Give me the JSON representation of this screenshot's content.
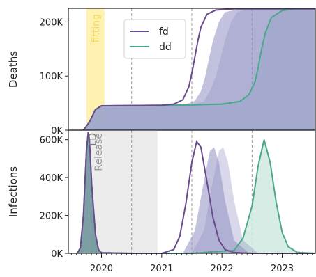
{
  "colors": {
    "fd": "#6a4a8c",
    "dd": "#4aa88a",
    "fd_band": "#8f8fc4",
    "dd_fill": "#cfe9df",
    "fitting": "#fff2b0",
    "fitting_text": "#f5d860",
    "release": "#ececec",
    "release_text": "#9a9a9a",
    "ld_text": "#7a7a7a",
    "vline": "#9a9a9a"
  },
  "chart_data": [
    {
      "type": "line",
      "panel": "top",
      "xlabel": "",
      "ylabel": "Deaths",
      "xlim": [
        2019.45,
        2023.55
      ],
      "ylim": [
        0,
        225000
      ],
      "yticks": [
        0,
        100000,
        200000
      ],
      "ytick_labels": [
        "0K",
        "100K",
        "200K"
      ],
      "vlines": [
        2020.5,
        2021.5,
        2022.5
      ],
      "shaded_regions": [
        {
          "label": "fitting",
          "x": [
            2019.75,
            2020.05
          ]
        }
      ],
      "legend": {
        "placement": "upper-center",
        "entries": [
          "fd",
          "dd"
        ]
      },
      "series": [
        {
          "name": "fd",
          "x": [
            2019.7,
            2019.8,
            2019.9,
            2020.0,
            2020.5,
            2021.0,
            2021.2,
            2021.35,
            2021.45,
            2021.5,
            2021.55,
            2021.6,
            2021.65,
            2021.75,
            2021.9,
            2022.2,
            2023.55
          ],
          "y": [
            0,
            15000,
            38000,
            45000,
            45500,
            46000,
            48000,
            56000,
            80000,
            105000,
            135000,
            165000,
            190000,
            214000,
            222000,
            224000,
            224000
          ]
        },
        {
          "name": "dd",
          "x": [
            2019.7,
            2019.8,
            2019.9,
            2020.0,
            2020.5,
            2021.0,
            2021.5,
            2022.0,
            2022.3,
            2022.45,
            2022.55,
            2022.6,
            2022.65,
            2022.72,
            2022.82,
            2023.0,
            2023.2,
            2023.55
          ],
          "y": [
            0,
            15000,
            38000,
            45000,
            45500,
            46000,
            46500,
            48000,
            53000,
            66000,
            90000,
            115000,
            145000,
            180000,
            208000,
            221000,
            224000,
            224000
          ]
        },
        {
          "name": "",
          "x": [
            2019.7,
            2019.8,
            2019.9,
            2020.0,
            2020.5,
            2021.0,
            2021.4,
            2021.55,
            2021.65,
            2021.72,
            2021.78,
            2021.85,
            2021.95,
            2022.05,
            2022.3,
            2023.55
          ],
          "y": [
            0,
            15000,
            38000,
            45000,
            45500,
            46000,
            47500,
            54000,
            72000,
            98000,
            130000,
            165000,
            200000,
            218000,
            224000,
            224000
          ]
        },
        {
          "name": "",
          "x": [
            2019.7,
            2019.8,
            2019.9,
            2020.0,
            2020.5,
            2021.0,
            2021.5,
            2021.7,
            2021.8,
            2021.9,
            2021.97,
            2022.05,
            2022.15,
            2022.25,
            2022.45,
            2023.55
          ],
          "y": [
            0,
            15000,
            38000,
            45000,
            45500,
            46000,
            47000,
            53000,
            72000,
            100000,
            130000,
            165000,
            200000,
            218000,
            224000,
            224000
          ]
        }
      ]
    },
    {
      "type": "line",
      "panel": "bottom",
      "xlabel": "",
      "ylabel": "Infections",
      "xlim": [
        2019.45,
        2023.55
      ],
      "ylim": [
        0,
        650000
      ],
      "yticks": [
        0,
        200000,
        400000,
        600000
      ],
      "ytick_labels": [
        "0K",
        "200K",
        "400K",
        "600K"
      ],
      "xticks": [
        2020,
        2021,
        2022,
        2023
      ],
      "xtick_labels": [
        "2020",
        "2021",
        "2022",
        "2023"
      ],
      "vlines": [
        2020.5,
        2021.5,
        2022.5
      ],
      "shaded_regions": [
        {
          "label": "LD",
          "x": [
            2019.65,
            2019.82
          ]
        },
        {
          "label": "Release",
          "x": [
            2019.82,
            2020.93
          ]
        }
      ],
      "series": [
        {
          "name": "fd",
          "x": [
            2019.6,
            2019.65,
            2019.7,
            2019.75,
            2019.78,
            2019.8,
            2019.84,
            2019.9,
            2019.95,
            2020.0,
            2020.5,
            2021.0,
            2021.2,
            2021.3,
            2021.4,
            2021.5,
            2021.58,
            2021.65,
            2021.75,
            2021.85,
            2021.95,
            2022.05,
            2022.2,
            2022.5,
            2023.55
          ],
          "y": [
            0,
            30000,
            200000,
            540000,
            640000,
            600000,
            350000,
            100000,
            20000,
            3000,
            0,
            0,
            20000,
            90000,
            260000,
            480000,
            590000,
            560000,
            380000,
            190000,
            70000,
            20000,
            4000,
            0,
            0
          ]
        },
        {
          "name": "dd",
          "x": [
            2019.6,
            2019.65,
            2019.7,
            2019.75,
            2019.78,
            2019.8,
            2019.84,
            2019.9,
            2019.95,
            2020.0,
            2020.5,
            2021.5,
            2022.2,
            2022.35,
            2022.5,
            2022.6,
            2022.7,
            2022.8,
            2022.9,
            2023.0,
            2023.1,
            2023.25,
            2023.55
          ],
          "y": [
            0,
            30000,
            200000,
            540000,
            640000,
            600000,
            350000,
            100000,
            20000,
            3000,
            0,
            0,
            15000,
            80000,
            250000,
            460000,
            600000,
            480000,
            270000,
            110000,
            35000,
            5000,
            0
          ]
        },
        {
          "name": "",
          "x": [
            2021.35,
            2021.55,
            2021.7,
            2021.8,
            2021.87,
            2021.95,
            2022.05,
            2022.2,
            2022.45
          ],
          "y": [
            0,
            120000,
            380000,
            540000,
            560000,
            480000,
            280000,
            70000,
            0
          ]
        },
        {
          "name": "",
          "x": [
            2021.5,
            2021.7,
            2021.85,
            2021.95,
            2022.02,
            2022.1,
            2022.2,
            2022.35,
            2022.6
          ],
          "y": [
            0,
            120000,
            380000,
            540000,
            560000,
            480000,
            280000,
            70000,
            0
          ]
        }
      ]
    }
  ]
}
